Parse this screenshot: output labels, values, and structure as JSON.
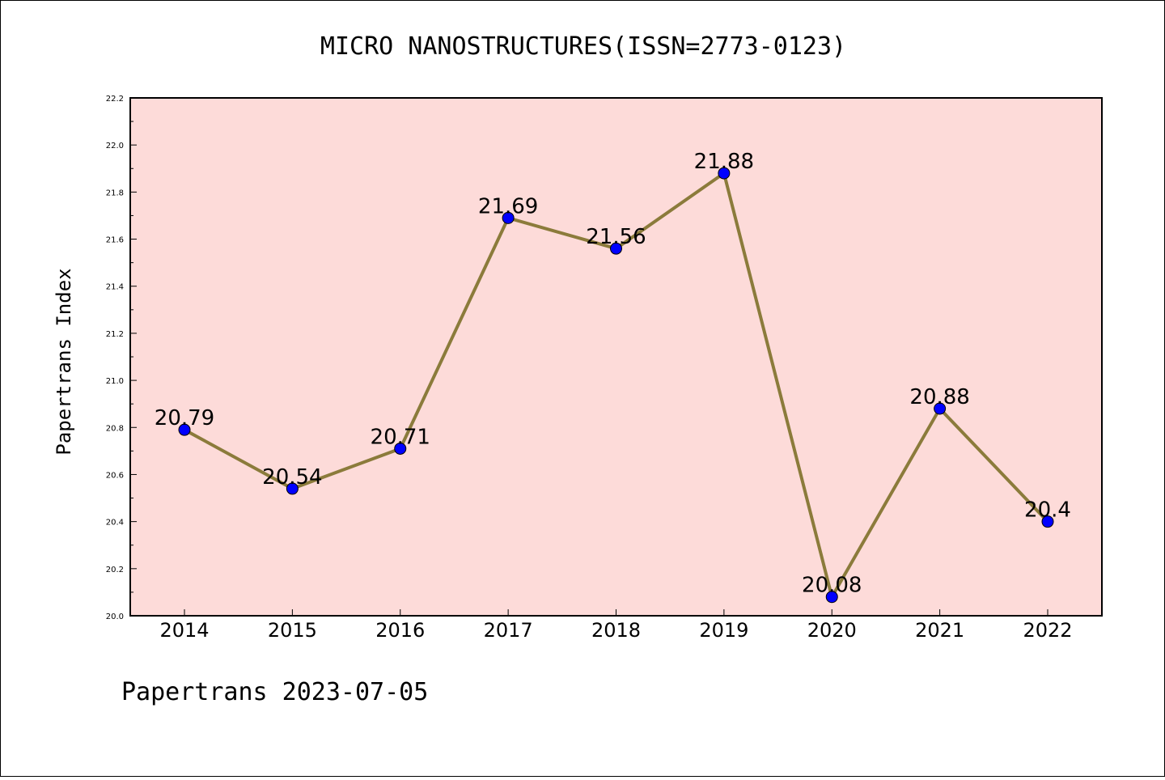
{
  "chart_data": {
    "type": "line",
    "title": "MICRO NANOSTRUCTURES(ISSN=2773-0123)",
    "ylabel": "Papertrans Index",
    "xlabel": "",
    "categories": [
      "2014",
      "2015",
      "2016",
      "2017",
      "2018",
      "2019",
      "2020",
      "2021",
      "2022"
    ],
    "values": [
      20.79,
      20.54,
      20.71,
      21.69,
      21.56,
      21.88,
      20.08,
      20.88,
      20.4
    ],
    "data_labels": [
      "20.79",
      "20.54",
      "20.71",
      "21.69",
      "21.56",
      "21.88",
      "20.08",
      "20.88",
      "20.4"
    ],
    "ylim": [
      20.0,
      22.2
    ],
    "yticks": [
      "20.0",
      "20.2",
      "20.4",
      "20.6",
      "20.8",
      "21.0",
      "21.2",
      "21.4",
      "21.6",
      "21.8",
      "22.0",
      "22.2"
    ],
    "grid": false,
    "colors": {
      "plot_background": "#fddbd9",
      "line": "#8b7b3b",
      "marker": "#0000ff"
    }
  },
  "footer": "Papertrans 2023-07-05"
}
